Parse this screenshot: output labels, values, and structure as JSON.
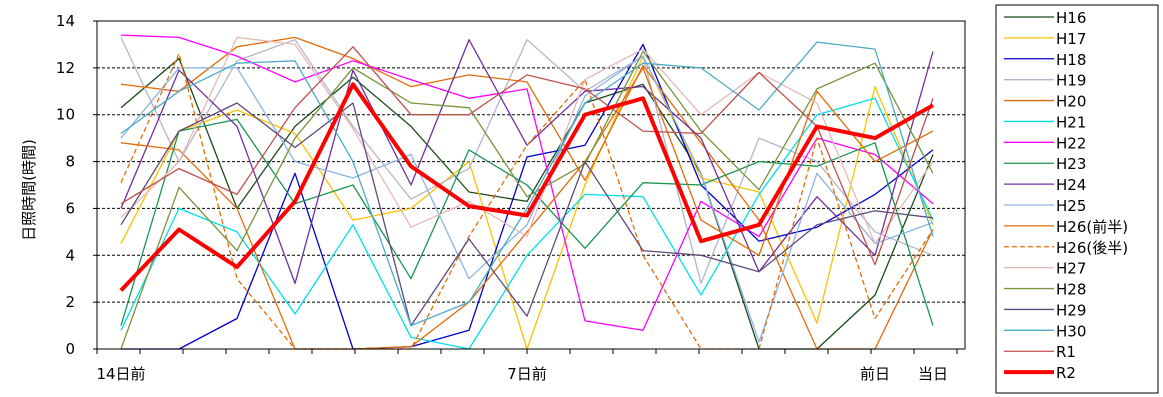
{
  "chart_data": {
    "type": "line",
    "ylabel": "日照時間(時間)",
    "ylim": [
      0,
      14
    ],
    "yticks": [
      "0",
      "2",
      "4",
      "6",
      "8",
      "10",
      "12",
      "14"
    ],
    "grid": "horizontal dashed",
    "legend_position": "right",
    "x_tick_labels": [
      {
        "i": 0,
        "label": "14日前"
      },
      {
        "i": 7,
        "label": "7日前"
      },
      {
        "i": 13,
        "label": "前日"
      },
      {
        "i": 14,
        "label": "当日"
      }
    ],
    "series": [
      {
        "name": "H16",
        "color": "#1a4a1a",
        "dash": false,
        "width": 1.3,
        "values": [
          10.3,
          12.4,
          6.0,
          9.5,
          11.6,
          9.5,
          6.7,
          6.3,
          10.5,
          11.3,
          7.5,
          0.0,
          0.0,
          2.3,
          8.3
        ]
      },
      {
        "name": "H17",
        "color": "#ffc000",
        "dash": false,
        "width": 1.3,
        "values": [
          4.5,
          9.3,
          10.2,
          9.2,
          5.5,
          6.0,
          8.0,
          0.0,
          7.0,
          12.5,
          7.3,
          6.7,
          1.1,
          11.2,
          5.3
        ]
      },
      {
        "name": "H18",
        "color": "#0000cc",
        "dash": false,
        "width": 1.3,
        "values": [
          0.0,
          0.0,
          1.3,
          7.5,
          0.0,
          0.1,
          0.8,
          8.2,
          8.7,
          13.0,
          7.0,
          4.6,
          5.2,
          6.6,
          8.5
        ]
      },
      {
        "name": "H19",
        "color": "#b4b4cc",
        "dash": false,
        "width": 1.3,
        "values": [
          13.3,
          8.0,
          12.3,
          13.2,
          9.5,
          6.4,
          7.7,
          13.2,
          11.0,
          12.5,
          2.8,
          9.0,
          8.0,
          5.0,
          4.0
        ]
      },
      {
        "name": "H20",
        "color": "#e36c09",
        "dash": false,
        "width": 1.3,
        "values": [
          11.3,
          11.0,
          12.9,
          13.3,
          12.4,
          11.2,
          11.7,
          11.4,
          7.2,
          12.1,
          8.8,
          5.5,
          0.0,
          0.0,
          5.1
        ]
      },
      {
        "name": "H21",
        "color": "#00e0e8",
        "dash": false,
        "width": 1.3,
        "values": [
          0.8,
          6.0,
          5.0,
          1.5,
          5.3,
          0.5,
          0.0,
          4.0,
          6.6,
          6.5,
          2.3,
          6.6,
          10.0,
          10.7,
          5.5
        ]
      },
      {
        "name": "H22",
        "color": "#ff00ff",
        "dash": false,
        "width": 1.3,
        "values": [
          13.4,
          13.3,
          12.5,
          11.4,
          12.3,
          11.5,
          10.7,
          11.1,
          1.2,
          0.8,
          6.3,
          4.8,
          9.0,
          8.3,
          6.2
        ]
      },
      {
        "name": "H23",
        "color": "#1a9650",
        "dash": false,
        "width": 1.3,
        "values": [
          1.0,
          9.3,
          9.8,
          6.2,
          7.0,
          3.0,
          8.5,
          7.0,
          4.3,
          7.1,
          7.0,
          8.0,
          7.8,
          8.8,
          1.0
        ]
      },
      {
        "name": "H24",
        "color": "#7030a0",
        "dash": false,
        "width": 1.3,
        "values": [
          6.0,
          11.9,
          9.5,
          2.8,
          11.9,
          7.0,
          13.2,
          8.7,
          11.0,
          11.2,
          9.0,
          3.3,
          6.5,
          4.0,
          12.7
        ]
      },
      {
        "name": "H25",
        "color": "#8db3e2",
        "dash": false,
        "width": 1.3,
        "values": [
          9.0,
          12.0,
          12.0,
          8.0,
          7.3,
          8.3,
          3.0,
          5.3,
          10.8,
          12.5,
          7.5,
          0.3,
          7.5,
          4.5,
          5.4
        ]
      },
      {
        "name": "H26(前半)",
        "color": "#e36c09",
        "dash": false,
        "width": 1.3,
        "values": [
          8.8,
          8.5,
          6.0,
          0.0,
          0.0,
          0.1,
          2.0,
          5.0,
          8.0,
          12.0,
          5.5,
          4.0,
          11.0,
          8.0,
          9.3
        ]
      },
      {
        "name": "H26(後半)",
        "color": "#e36c09",
        "dash": true,
        "width": 1.3,
        "values": [
          7.1,
          12.6,
          3.0,
          0.0,
          0.0,
          0.0,
          4.8,
          8.7,
          11.5,
          4.0,
          0.0,
          0.0,
          9.0,
          1.3,
          5.1
        ]
      },
      {
        "name": "H27",
        "color": "#e6b8b7",
        "dash": false,
        "width": 1.3,
        "values": [
          5.6,
          8.0,
          13.3,
          13.0,
          9.4,
          5.2,
          6.3,
          4.8,
          11.5,
          12.8,
          10.0,
          11.8,
          10.5,
          4.5,
          8.0
        ]
      },
      {
        "name": "H28",
        "color": "#77933c",
        "dash": false,
        "width": 1.3,
        "values": [
          0.0,
          6.9,
          4.2,
          9.0,
          12.0,
          10.5,
          10.3,
          6.5,
          7.9,
          12.7,
          9.3,
          6.8,
          11.1,
          12.2,
          7.5
        ]
      },
      {
        "name": "H29",
        "color": "#604a7b",
        "dash": false,
        "width": 1.3,
        "values": [
          5.3,
          9.3,
          10.5,
          8.6,
          10.5,
          1.0,
          4.7,
          1.4,
          8.0,
          4.2,
          4.0,
          3.3,
          5.3,
          5.9,
          5.6
        ]
      },
      {
        "name": "H30",
        "color": "#4bacc6",
        "dash": false,
        "width": 1.3,
        "values": [
          9.2,
          11.0,
          12.2,
          12.3,
          8.0,
          1.0,
          2.0,
          6.0,
          10.5,
          12.2,
          12.0,
          10.2,
          13.1,
          12.8,
          4.8
        ]
      },
      {
        "name": "R1",
        "color": "#c0504d",
        "dash": false,
        "width": 1.3,
        "values": [
          6.2,
          7.7,
          6.6,
          10.3,
          12.9,
          10.0,
          10.0,
          11.7,
          11.1,
          9.3,
          9.2,
          11.8,
          9.5,
          3.6,
          10.7
        ]
      },
      {
        "name": "R2",
        "color": "#ff0000",
        "dash": false,
        "width": 4,
        "values": [
          2.5,
          5.1,
          3.5,
          6.3,
          11.3,
          7.8,
          6.1,
          5.7,
          10.0,
          10.7,
          4.6,
          5.3,
          9.5,
          9.0,
          10.4
        ]
      }
    ]
  }
}
